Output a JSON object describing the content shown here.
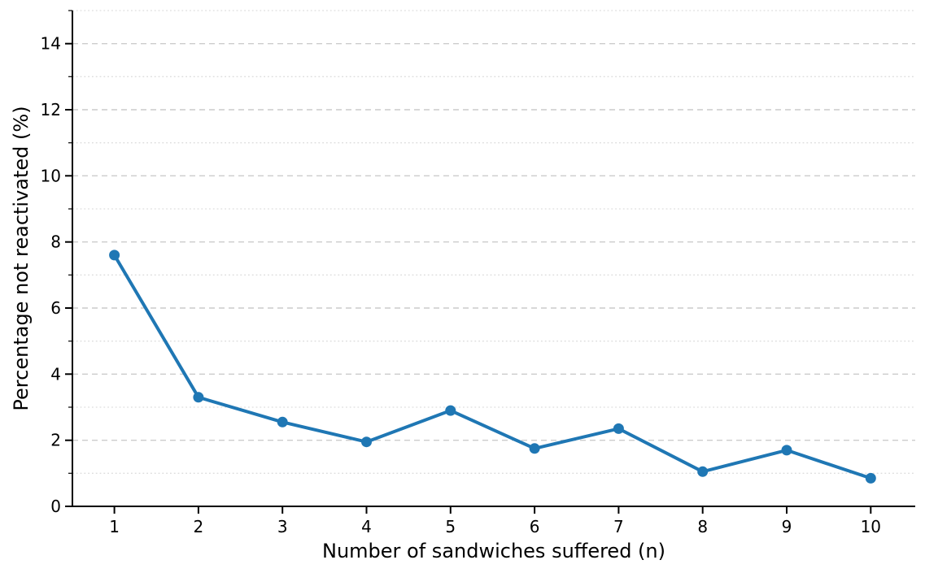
{
  "figure": {
    "background": "#ffffff"
  },
  "chart_data": {
    "type": "line",
    "title": "",
    "xlabel": "Number of sandwiches suffered (n)",
    "ylabel": "Percentage not reactivated (%)",
    "x": [
      1,
      2,
      3,
      4,
      5,
      6,
      7,
      8,
      9,
      10
    ],
    "series": [
      {
        "name": "Percentage not reactivated",
        "values": [
          7.6,
          3.3,
          2.55,
          1.95,
          2.9,
          1.75,
          2.35,
          1.05,
          1.7,
          0.85
        ]
      }
    ],
    "xlim": [
      0.5,
      10.53
    ],
    "ylim": [
      0,
      15
    ],
    "xticks": [
      1,
      2,
      3,
      4,
      5,
      6,
      7,
      8,
      9,
      10
    ],
    "xtick_labels": [
      "1",
      "2",
      "3",
      "4",
      "5",
      "6",
      "7",
      "8",
      "9",
      "10"
    ],
    "yticks_major": [
      0,
      2,
      4,
      6,
      8,
      10,
      12,
      14
    ],
    "ytick_labels": [
      "0",
      "2",
      "4",
      "6",
      "8",
      "10",
      "12",
      "14"
    ],
    "yticks_minor": [
      1,
      3,
      5,
      7,
      9,
      11,
      13,
      15
    ],
    "grid": "horizontal only: dashed on major ticks, dotted on minor ticks",
    "legend": "none",
    "style": {
      "line_color": "#1f77b4",
      "marker": "circle",
      "marker_color": "#1f77b4",
      "grid_major_color": "#cccccc",
      "grid_minor_color": "#dddddd",
      "axis_color": "#000000"
    }
  }
}
